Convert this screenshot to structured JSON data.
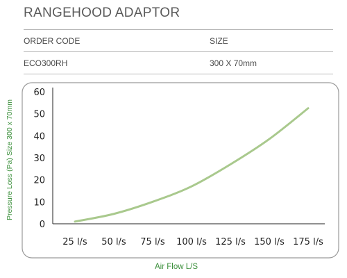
{
  "header": {
    "title": "RANGEHOOD ADAPTOR"
  },
  "spec_table": {
    "columns": [
      "ORDER CODE",
      "SIZE"
    ],
    "rows": [
      [
        "ECO300RH",
        "300 X 70mm"
      ]
    ]
  },
  "colors": {
    "curve": "#a9c98d",
    "axis_label": "#3b8f3b",
    "frame": "#9a9a9a"
  },
  "chart_data": {
    "type": "line",
    "title": "",
    "xlabel": "Air Flow L/S",
    "ylabel": "Pressure Loss (Pa) Size 300 x 70mm",
    "categories": [
      "25 l/s",
      "50 l/s",
      "75 l/s",
      "100 l/s",
      "125 l/s",
      "150 l/s",
      "175 l/s"
    ],
    "series": [
      {
        "values": [
          1,
          4.5,
          10,
          17,
          27,
          38.5,
          52.5
        ]
      }
    ],
    "ylim": [
      0,
      60
    ],
    "yticks": [
      0,
      10,
      20,
      30,
      40,
      50,
      60
    ],
    "grid": false,
    "legend": "none"
  }
}
